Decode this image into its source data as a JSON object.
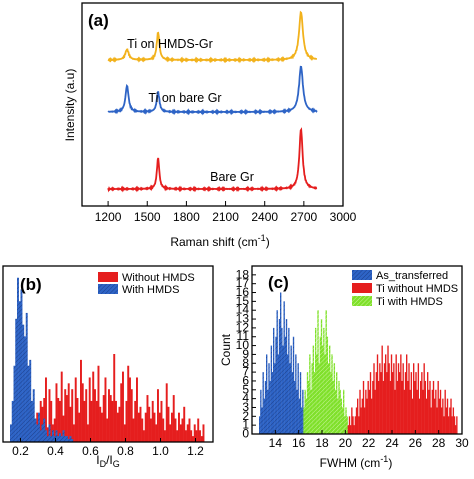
{
  "chart_data": [
    {
      "panel_label": "(a)",
      "type": "line",
      "xlabel_main": "Raman shift (cm",
      "xlabel_sup": "-1",
      "xlabel_tail": ")",
      "ylabel": "Intensity (a.u)",
      "xlim": [
        1000,
        3000
      ],
      "xticks": [
        1200,
        1500,
        1800,
        2100,
        2400,
        2700,
        3000
      ],
      "x_range_plotted": [
        1200,
        2800
      ],
      "series": [
        {
          "name": "Ti on HMDS-Gr",
          "color": "#F2B21C",
          "offset": 2.2,
          "peaks": [
            {
              "x": 1345,
              "height": 0.22,
              "width": 16
            },
            {
              "x": 1583,
              "height": 0.58,
              "width": 12
            },
            {
              "x": 2678,
              "height": 1.0,
              "width": 18
            }
          ]
        },
        {
          "name": "Ti on bare Gr",
          "color": "#2E64C6",
          "offset": 1.15,
          "peaks": [
            {
              "x": 1345,
              "height": 0.55,
              "width": 14
            },
            {
              "x": 1583,
              "height": 0.42,
              "width": 12
            },
            {
              "x": 2678,
              "height": 0.95,
              "width": 18
            }
          ]
        },
        {
          "name": "Bare Gr",
          "color": "#E51E1E",
          "offset": 0.0,
          "peaks": [
            {
              "x": 1583,
              "height": 0.65,
              "width": 11
            },
            {
              "x": 2678,
              "height": 1.25,
              "width": 15
            }
          ]
        }
      ]
    },
    {
      "panel_label": "(b)",
      "type": "histogram",
      "xlabel": "I",
      "xlabel_sub1": "D",
      "xlabel_mid": "/I",
      "xlabel_sub2": "G",
      "xlim": [
        0.1,
        1.3
      ],
      "ylim": [
        0,
        60
      ],
      "xticks": [
        0.2,
        0.4,
        0.6,
        0.8,
        1.0,
        1.2
      ],
      "xtick_labels": [
        "0.2",
        "0.4",
        "0.6",
        "0.8",
        "1.0",
        "1.2"
      ],
      "legend": [
        {
          "name": "Without HMDS",
          "color": "#E51E1E"
        },
        {
          "name": "With HMDS",
          "color": "#2E64C6"
        }
      ],
      "series": [
        {
          "name": "Without HMDS",
          "color": "#E51E1E",
          "bin_start": 0.2,
          "bin_width": 0.01,
          "values": [
            10,
            14,
            6,
            5,
            12,
            8,
            3,
            4,
            2,
            10,
            8,
            14,
            12,
            15,
            22,
            5,
            18,
            14,
            6,
            8,
            20,
            15,
            14,
            24,
            9,
            18,
            16,
            20,
            12,
            18,
            6,
            22,
            15,
            10,
            28,
            20,
            14,
            18,
            6,
            22,
            14,
            24,
            18,
            14,
            26,
            12,
            10,
            16,
            22,
            8,
            18,
            16,
            14,
            30,
            14,
            10,
            12,
            20,
            24,
            6,
            14,
            26,
            22,
            18,
            8,
            14,
            22,
            10,
            12,
            8,
            4,
            10,
            16,
            12,
            8,
            14,
            10,
            6,
            18,
            10,
            14,
            8,
            4,
            20,
            12,
            6,
            10,
            16,
            8,
            4,
            10,
            6,
            8,
            12,
            4,
            6,
            8,
            4,
            2,
            6,
            4,
            8,
            4,
            2,
            6
          ]
        },
        {
          "name": "With HMDS",
          "color": "#2E64C6",
          "bin_start": 0.14,
          "bin_width": 0.01,
          "values": [
            6,
            14,
            26,
            42,
            56,
            48,
            52,
            40,
            36,
            44,
            26,
            28,
            14,
            18,
            8,
            6,
            10,
            4,
            6,
            8,
            4,
            2,
            6,
            2,
            4,
            2,
            4,
            2,
            3,
            2,
            4,
            2,
            2,
            1,
            2,
            1
          ]
        }
      ]
    },
    {
      "panel_label": "(c)",
      "type": "histogram",
      "xlabel_main": "FWHM (cm",
      "xlabel_sup": "-1",
      "xlabel_tail": ")",
      "ylabel": "Count",
      "xlim": [
        12,
        30
      ],
      "ylim": [
        0,
        19
      ],
      "xticks": [
        14,
        16,
        18,
        20,
        22,
        24,
        26,
        28,
        30
      ],
      "yticks": [
        0,
        1,
        2,
        3,
        4,
        5,
        6,
        7,
        8,
        9,
        10,
        11,
        12,
        13,
        14,
        15,
        16,
        17,
        18
      ],
      "legend": [
        {
          "name": "As_transferred",
          "color": "#2E64C6"
        },
        {
          "name": "Ti without HMDS",
          "color": "#E51E1E"
        },
        {
          "name": "Ti with HMDS",
          "color": "#7FE02A"
        }
      ],
      "series": [
        {
          "name": "As_transferred",
          "color": "#2E64C6",
          "bin_start": 12.6,
          "bin_width": 0.1,
          "values": [
            2,
            5,
            3,
            7,
            4,
            6,
            9,
            5,
            8,
            6,
            10,
            7,
            12,
            8,
            11,
            14,
            9,
            13,
            16,
            12,
            10,
            15,
            11,
            13,
            9,
            12,
            8,
            10,
            7,
            11,
            6,
            9,
            5,
            8,
            4,
            7,
            3,
            5,
            2,
            4
          ]
        },
        {
          "name": "Ti with HMDS",
          "color": "#7FE02A",
          "bin_start": 16.4,
          "bin_width": 0.1,
          "values": [
            3,
            5,
            4,
            7,
            6,
            9,
            5,
            8,
            10,
            7,
            12,
            9,
            14,
            8,
            11,
            13,
            10,
            12,
            9,
            14,
            11,
            8,
            10,
            7,
            9,
            6,
            8,
            5,
            7,
            4,
            6,
            5,
            4,
            3,
            5,
            2,
            3,
            2
          ]
        },
        {
          "name": "Ti without HMDS",
          "color": "#E51E1E",
          "bin_start": 20.2,
          "bin_width": 0.1,
          "values": [
            1,
            2,
            1,
            3,
            2,
            1,
            2,
            3,
            4,
            2,
            5,
            3,
            4,
            6,
            3,
            5,
            4,
            6,
            5,
            7,
            4,
            6,
            8,
            5,
            7,
            9,
            6,
            8,
            7,
            10,
            6,
            8,
            9,
            7,
            10,
            8,
            6,
            9,
            7,
            8,
            5,
            9,
            6,
            8,
            7,
            9,
            6,
            8,
            5,
            7,
            9,
            6,
            8,
            5,
            7,
            4,
            8,
            6,
            7,
            5,
            8,
            4,
            6,
            7,
            5,
            8,
            6,
            4,
            7,
            5,
            6,
            3,
            5,
            6,
            4,
            5,
            3,
            6,
            4,
            5,
            3,
            4,
            2,
            5,
            3,
            4,
            2,
            3,
            4,
            2,
            3,
            2,
            1,
            2
          ]
        }
      ]
    }
  ]
}
